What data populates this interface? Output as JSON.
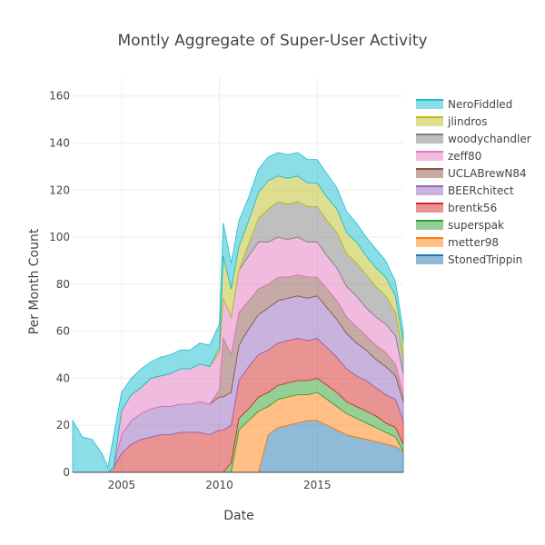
{
  "chart_data": {
    "type": "area",
    "stacked": true,
    "title": "Montly Aggregate of Super-User Activity",
    "xlabel": "Date",
    "ylabel": "Per Month Count",
    "xlim": [
      2002.5,
      2019.4
    ],
    "ylim": [
      0,
      168
    ],
    "x_ticks": [
      2005,
      2010,
      2015
    ],
    "y_ticks": [
      0,
      20,
      40,
      60,
      80,
      100,
      120,
      140,
      160
    ],
    "grid": true,
    "legend_position": "top-right",
    "x": [
      2002.5,
      2003.0,
      2003.5,
      2004.0,
      2004.3,
      2004.6,
      2005.0,
      2005.5,
      2006.0,
      2006.5,
      2007.0,
      2007.5,
      2008.0,
      2008.5,
      2009.0,
      2009.5,
      2010.0,
      2010.2,
      2010.6,
      2011.0,
      2011.5,
      2012.0,
      2012.5,
      2013.0,
      2013.5,
      2014.0,
      2014.5,
      2015.0,
      2015.5,
      2016.0,
      2016.5,
      2017.0,
      2017.5,
      2018.0,
      2018.5,
      2019.0,
      2019.4
    ],
    "series": [
      {
        "name": "StonedTrippin",
        "color": "#1f77b4",
        "values": [
          0,
          0,
          0,
          0,
          0,
          0,
          0,
          0,
          0,
          0,
          0,
          0,
          0,
          0,
          0,
          0,
          0,
          0,
          0,
          0,
          0,
          0,
          16,
          19,
          20,
          21,
          22,
          22,
          20,
          18,
          16,
          15,
          14,
          13,
          12,
          11,
          9
        ]
      },
      {
        "name": "metter98",
        "color": "#ff7f0e",
        "values": [
          0,
          0,
          0,
          0,
          0,
          0,
          0,
          0,
          0,
          0,
          0,
          0,
          0,
          0,
          0,
          0,
          0,
          0,
          0,
          18,
          22,
          26,
          12,
          12,
          12,
          12,
          11,
          12,
          11,
          10,
          9,
          8,
          7,
          6,
          5,
          4,
          0
        ]
      },
      {
        "name": "superspak",
        "color": "#2ca02c",
        "values": [
          0,
          0,
          0,
          0,
          0,
          0,
          0,
          0,
          0,
          0,
          0,
          0,
          0,
          0,
          0,
          0,
          0,
          0,
          4,
          5,
          5,
          6,
          6,
          6,
          6,
          6,
          6,
          6,
          6,
          6,
          5,
          5,
          5,
          5,
          4,
          4,
          3
        ]
      },
      {
        "name": "brentk56",
        "color": "#d62728",
        "values": [
          0,
          0,
          0,
          0,
          0,
          2,
          8,
          12,
          14,
          15,
          16,
          16,
          17,
          17,
          17,
          16,
          18,
          18,
          16,
          16,
          18,
          18,
          18,
          18,
          18,
          18,
          17,
          17,
          16,
          15,
          14,
          13,
          13,
          12,
          12,
          12,
          10
        ]
      },
      {
        "name": "BEERchitect",
        "color": "#9467bd",
        "values": [
          0,
          0,
          0,
          0,
          0,
          0,
          8,
          10,
          11,
          12,
          12,
          12,
          12,
          12,
          13,
          13,
          14,
          14,
          14,
          15,
          16,
          17,
          18,
          18,
          18,
          18,
          18,
          18,
          17,
          16,
          15,
          14,
          13,
          12,
          12,
          10,
          8
        ]
      },
      {
        "name": "UCLABrewN84",
        "color": "#8c564b",
        "values": [
          0,
          0,
          0,
          0,
          0,
          0,
          0,
          0,
          0,
          0,
          0,
          0,
          0,
          0,
          0,
          0,
          3,
          25,
          16,
          14,
          12,
          11,
          10,
          10,
          9,
          9,
          9,
          8,
          8,
          8,
          7,
          7,
          6,
          6,
          6,
          5,
          3
        ]
      },
      {
        "name": "zeff80",
        "color": "#e377c2",
        "values": [
          0,
          0,
          0,
          0,
          0,
          0,
          10,
          11,
          11,
          13,
          13,
          14,
          15,
          15,
          16,
          16,
          16,
          17,
          16,
          18,
          19,
          20,
          18,
          17,
          16,
          16,
          15,
          15,
          14,
          14,
          13,
          13,
          12,
          12,
          12,
          12,
          9
        ]
      },
      {
        "name": "woodychandler",
        "color": "#7f7f7f",
        "values": [
          0,
          0,
          0,
          0,
          0,
          0,
          0,
          0,
          0,
          0,
          0,
          0,
          0,
          0,
          0,
          0,
          0,
          0,
          0,
          0,
          5,
          10,
          14,
          15,
          15,
          15,
          15,
          15,
          15,
          15,
          14,
          14,
          14,
          13,
          12,
          10,
          8
        ]
      },
      {
        "name": "jlindros",
        "color": "#bcbd22",
        "values": [
          0,
          0,
          0,
          0,
          0,
          0,
          0,
          0,
          0,
          0,
          0,
          0,
          0,
          0,
          0,
          0,
          2,
          18,
          12,
          10,
          10,
          11,
          12,
          11,
          11,
          11,
          10,
          10,
          10,
          10,
          9,
          9,
          8,
          8,
          8,
          7,
          5
        ]
      },
      {
        "name": "NeroFiddled",
        "color": "#17becf",
        "values": [
          22,
          15,
          14,
          8,
          2,
          14,
          8,
          7,
          8,
          7,
          8,
          8,
          8,
          8,
          9,
          9,
          10,
          14,
          11,
          11,
          10,
          10,
          10,
          10,
          10,
          10,
          10,
          10,
          10,
          9,
          9,
          8,
          8,
          8,
          7,
          6,
          5
        ]
      }
    ]
  }
}
